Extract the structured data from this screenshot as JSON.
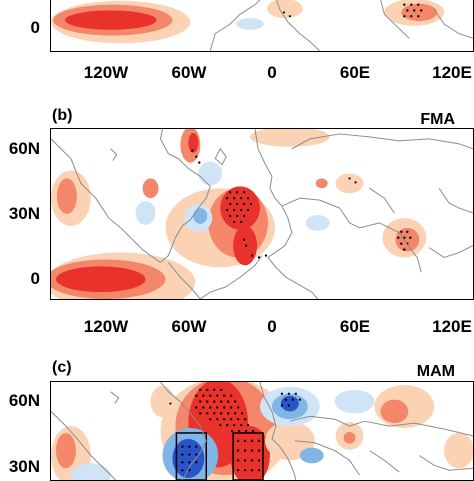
{
  "panel_a": {
    "x_ticks": [
      "120W",
      "60W",
      "0",
      "60E",
      "120E"
    ],
    "y_ticks": [
      "0"
    ]
  },
  "panel_b": {
    "label": "(b)",
    "season": "FMA",
    "x_ticks": [
      "120W",
      "60W",
      "0",
      "60E",
      "120E"
    ],
    "y_ticks": [
      "60N",
      "30N",
      "0"
    ]
  },
  "panel_c": {
    "label": "(c)",
    "season": "MAM",
    "y_ticks": [
      "60N",
      "30N"
    ]
  },
  "colors": {
    "positive_strong": "#e8322b",
    "positive_mid": "#f4876a",
    "positive_light": "#fbd3b4",
    "negative_light": "#cfe5f7",
    "negative_mid": "#7fb6e6",
    "negative_strong": "#2a55c8",
    "coastline": "#8c8c8c"
  }
}
